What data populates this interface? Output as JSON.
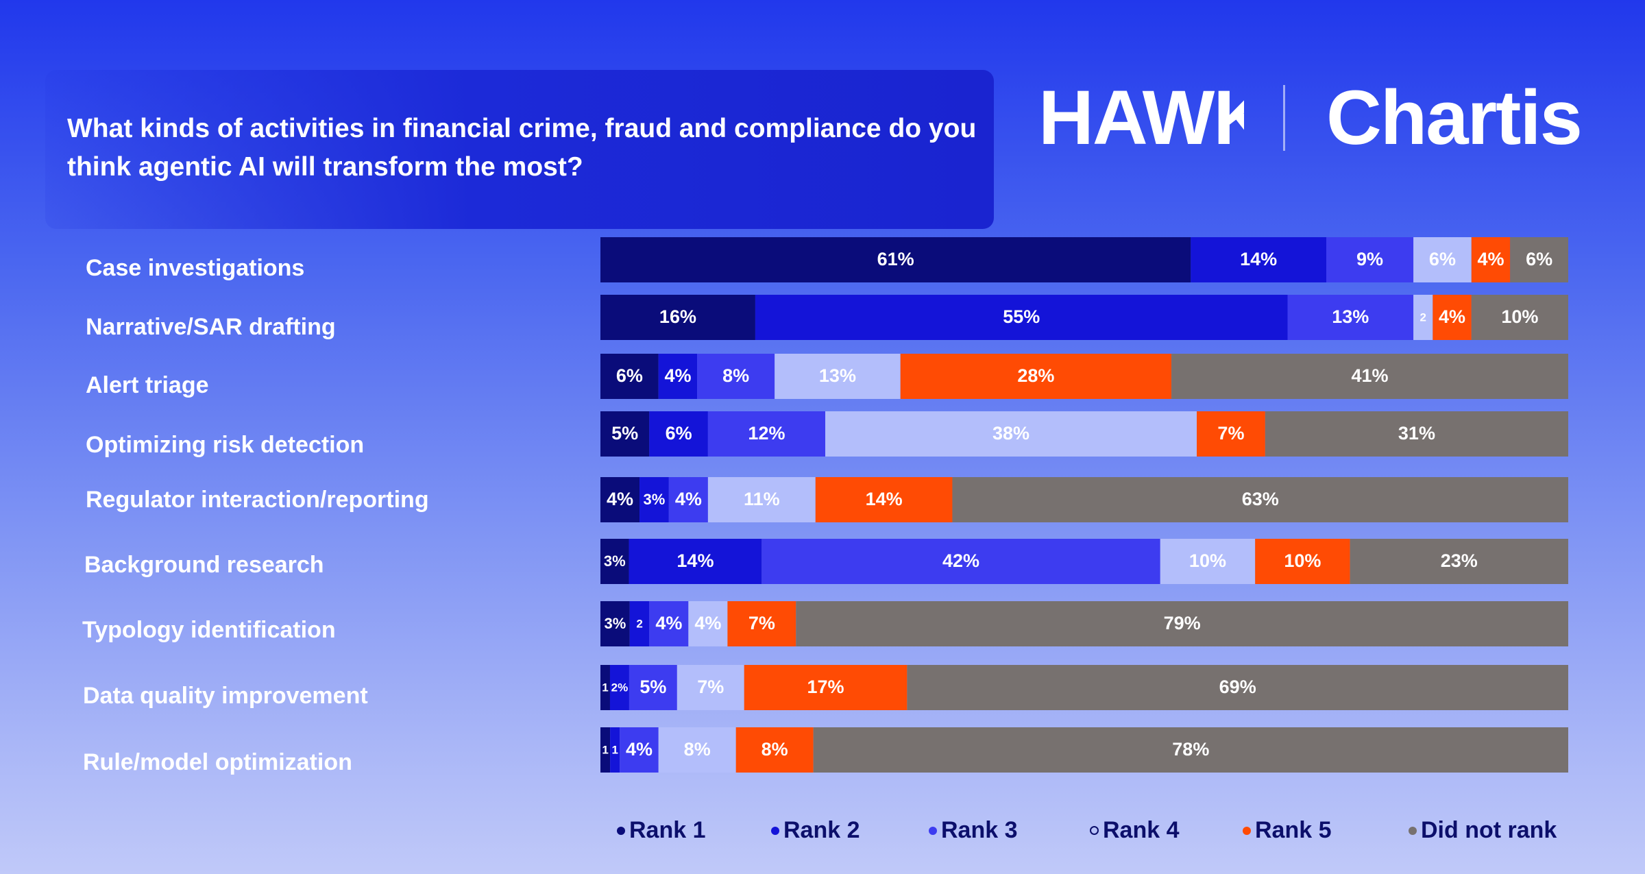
{
  "title": "What kinds of activities in financial crime, fraud and compliance do you think agentic AI will transform the most?",
  "logos": {
    "left": "HAWK",
    "right": "Chartis"
  },
  "colors": {
    "rank1": "#0a0c7a",
    "rank2": "#1414d8",
    "rank3": "#3d3cf0",
    "rank4": "#b3befb",
    "rank5": "#ff4b04",
    "not_ranked": "#77716f",
    "legend_text": "#0c0f6b"
  },
  "chart_data": {
    "type": "bar",
    "orientation": "horizontal",
    "stacked": true,
    "normalized": true,
    "categories": [
      "Case investigations",
      "Narrative/SAR drafting",
      "Alert triage",
      "Optimizing risk detection",
      "Regulator interaction/reporting",
      "Background research",
      "Typology identification",
      "Data quality improvement",
      "Rule/model optimization"
    ],
    "series": [
      {
        "name": "Rank 1",
        "values": [
          61,
          16,
          6,
          5,
          4,
          3,
          3,
          1,
          1
        ],
        "labels": [
          "61%",
          "16%",
          "6%",
          "5%",
          "4%",
          "3%",
          "3%",
          "1",
          "1"
        ]
      },
      {
        "name": "Rank 2",
        "values": [
          14,
          55,
          4,
          6,
          3,
          14,
          2,
          2,
          1
        ],
        "labels": [
          "14%",
          "55%",
          "4%",
          "6%",
          "3%",
          "14%",
          "2",
          "2%",
          "1"
        ]
      },
      {
        "name": "Rank 3",
        "values": [
          9,
          13,
          8,
          12,
          4,
          42,
          4,
          5,
          4
        ],
        "labels": [
          "9%",
          "13%",
          "8%",
          "12%",
          "4%",
          "42%",
          "4%",
          "5%",
          "4%"
        ]
      },
      {
        "name": "Rank 4",
        "values": [
          6,
          2,
          13,
          38,
          11,
          10,
          4,
          7,
          8
        ],
        "labels": [
          "6%",
          "2",
          "13%",
          "38%",
          "11%",
          "10%",
          "4%",
          "7%",
          "8%"
        ]
      },
      {
        "name": "Rank 5",
        "values": [
          4,
          4,
          28,
          7,
          14,
          10,
          7,
          17,
          8
        ],
        "labels": [
          "4%",
          "4%",
          "28%",
          "7%",
          "14%",
          "10%",
          "7%",
          "17%",
          "8%"
        ]
      },
      {
        "name": "Did not rank",
        "values": [
          6,
          10,
          41,
          31,
          63,
          23,
          79,
          69,
          78
        ],
        "labels": [
          "6%",
          "10%",
          "41%",
          "31%",
          "63%",
          "23%",
          "79%",
          "69%",
          "78%"
        ]
      }
    ],
    "xlim": [
      0,
      100
    ],
    "legend": [
      "Rank 1",
      "Rank 2",
      "Rank 3",
      "Rank 4",
      "Rank 5",
      "Did not rank"
    ],
    "legend_position": "bottom"
  }
}
